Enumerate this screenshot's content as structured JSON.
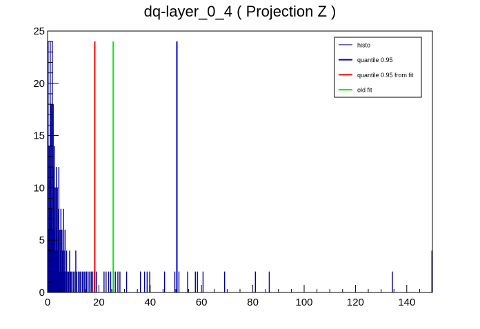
{
  "chart_data": {
    "type": "bar",
    "title": "dq-layer_0_4 ( Projection Z )",
    "xlim": [
      0,
      150
    ],
    "ylim": [
      0,
      25
    ],
    "x_ticks": [
      0,
      20,
      40,
      60,
      80,
      100,
      120,
      140
    ],
    "y_ticks": [
      0,
      5,
      10,
      15,
      20,
      25
    ],
    "grid": false,
    "legend_position": "top-right",
    "histogram": {
      "name": "histo",
      "color": "#000099",
      "points": [
        [
          0.2,
          24
        ],
        [
          0.4,
          6
        ],
        [
          0.6,
          14
        ],
        [
          0.8,
          8
        ],
        [
          1.0,
          24
        ],
        [
          1.2,
          12
        ],
        [
          1.4,
          18
        ],
        [
          1.6,
          8
        ],
        [
          1.8,
          24
        ],
        [
          2.0,
          6
        ],
        [
          2.2,
          18
        ],
        [
          2.4,
          12
        ],
        [
          2.6,
          14
        ],
        [
          2.8,
          6
        ],
        [
          3.0,
          10
        ],
        [
          3.2,
          4
        ],
        [
          3.4,
          12
        ],
        [
          3.6,
          6
        ],
        [
          3.8,
          10
        ],
        [
          4.0,
          4
        ],
        [
          4.2,
          8
        ],
        [
          4.4,
          12
        ],
        [
          4.6,
          2
        ],
        [
          4.8,
          6
        ],
        [
          5.0,
          4
        ],
        [
          5.2,
          8
        ],
        [
          5.4,
          2
        ],
        [
          5.6,
          6
        ],
        [
          5.8,
          4
        ],
        [
          6.0,
          2
        ],
        [
          6.2,
          8
        ],
        [
          6.4,
          4
        ],
        [
          6.6,
          2
        ],
        [
          6.8,
          6
        ],
        [
          7.0,
          2
        ],
        [
          7.4,
          4
        ],
        [
          7.8,
          2
        ],
        [
          8.2,
          2
        ],
        [
          8.6,
          4
        ],
        [
          9.0,
          2
        ],
        [
          9.4,
          2
        ],
        [
          10.0,
          2
        ],
        [
          10.6,
          2
        ],
        [
          11.0,
          4
        ],
        [
          11.4,
          2
        ],
        [
          12.0,
          2
        ],
        [
          12.6,
          2
        ],
        [
          13.0,
          2
        ],
        [
          13.6,
          2
        ],
        [
          14.2,
          2
        ],
        [
          14.6,
          2
        ],
        [
          15.2,
          2
        ],
        [
          15.8,
          2
        ],
        [
          16.4,
          2
        ],
        [
          17.0,
          2
        ],
        [
          17.6,
          2
        ],
        [
          18.2,
          2
        ],
        [
          19.0,
          2
        ],
        [
          22.0,
          2
        ],
        [
          22.8,
          2
        ],
        [
          23.8,
          2
        ],
        [
          24.6,
          2
        ],
        [
          26.4,
          2
        ],
        [
          27.4,
          2
        ],
        [
          28.2,
          2
        ],
        [
          30.8,
          2
        ],
        [
          36.2,
          2
        ],
        [
          37.8,
          2
        ],
        [
          38.8,
          2
        ],
        [
          39.8,
          2
        ],
        [
          45.6,
          2
        ],
        [
          49.6,
          2
        ],
        [
          50.4,
          2
        ],
        [
          51.2,
          2
        ],
        [
          54.6,
          2
        ],
        [
          57.6,
          2
        ],
        [
          58.4,
          2
        ],
        [
          60.6,
          2
        ],
        [
          69.0,
          2
        ],
        [
          81.0,
          2
        ],
        [
          86.4,
          2
        ],
        [
          134.4,
          2
        ],
        [
          149.8,
          4
        ]
      ]
    },
    "vertical_lines": [
      {
        "name": "quantile 0.95",
        "x": 50.4,
        "y_top": 24,
        "color": "#0000cc"
      },
      {
        "name": "quantile 0.95 from fit",
        "x": 18.4,
        "y_top": 24,
        "color": "#ff0000"
      },
      {
        "name": "old fit",
        "x": 25.6,
        "y_top": 24,
        "color": "#00ee00"
      }
    ],
    "legend": [
      {
        "label": "histo",
        "color": "#000099",
        "width": 1
      },
      {
        "label": "quantile 0.95",
        "color": "#0000cc",
        "width": 2
      },
      {
        "label": "quantile 0.95 from fit",
        "color": "#ff0000",
        "width": 2
      },
      {
        "label": "old fit",
        "color": "#00ee00",
        "width": 2
      }
    ]
  }
}
